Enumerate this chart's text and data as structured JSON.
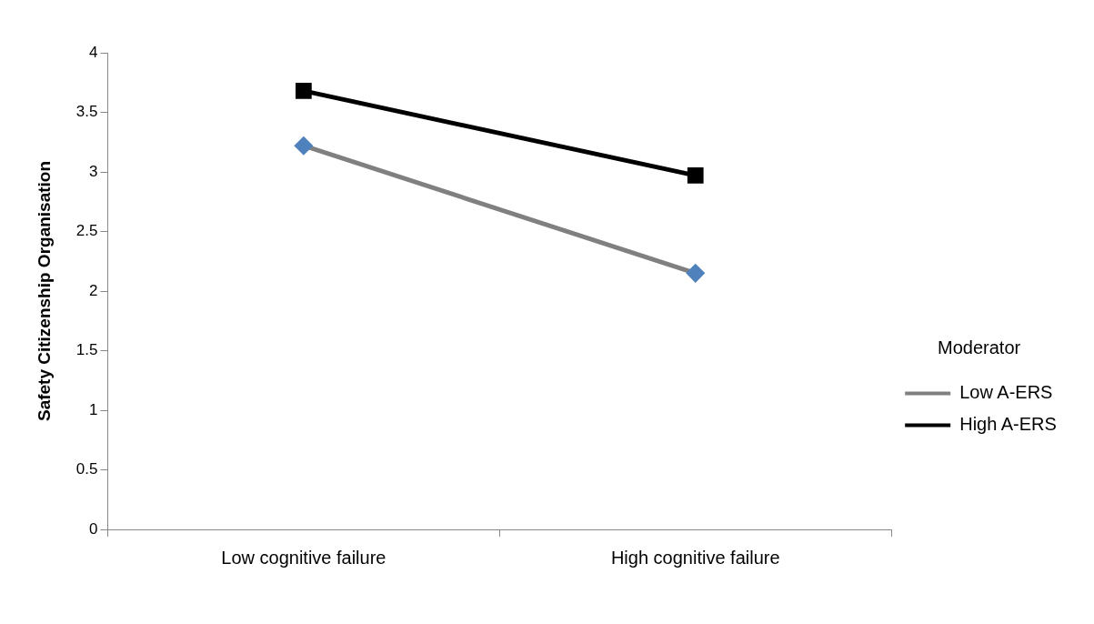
{
  "chart_data": {
    "type": "line",
    "ylabel": "Safety Citizenship Organisation",
    "legend_title": "Moderator",
    "legend": "right",
    "grid": false,
    "categories": [
      "Low cognitive failure",
      "High cognitive failure"
    ],
    "ylim": [
      0,
      4
    ],
    "yticks": [
      0,
      0.5,
      1,
      1.5,
      2,
      2.5,
      3,
      3.5,
      4
    ],
    "series": [
      {
        "name": "Low A-ERS",
        "color": "#808080",
        "marker": "diamond",
        "colors": [
          "#4f81bd",
          "#4f81bd"
        ],
        "values": [
          3.22,
          2.15
        ]
      },
      {
        "name": "High A-ERS",
        "color": "#000000",
        "marker": "square",
        "values": [
          3.68,
          2.97
        ]
      }
    ]
  }
}
